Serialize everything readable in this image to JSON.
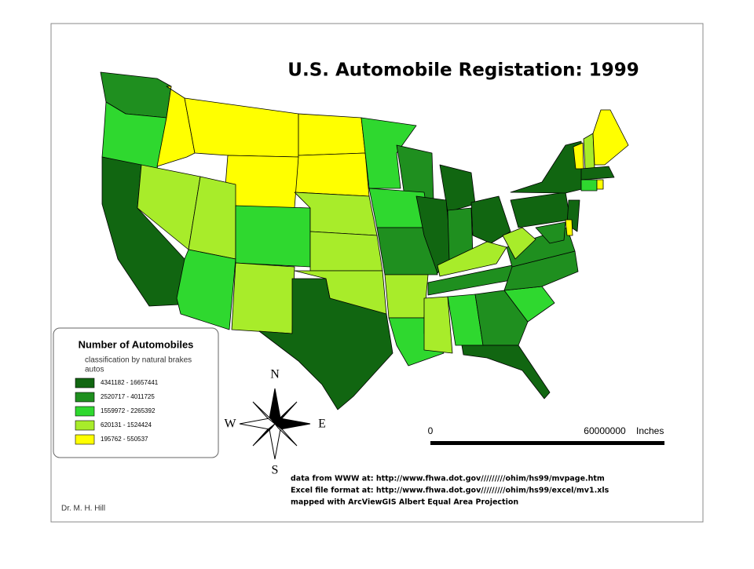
{
  "title": "U.S. Automobile Registation: 1999",
  "legend": {
    "title": "Number of Automobiles",
    "subtitle": "classification by natural brakes",
    "unit": "autos",
    "classes": [
      {
        "label": "4341182 - 16657441",
        "color": "#116611"
      },
      {
        "label": "2520717 - 4011725",
        "color": "#1f8f1f"
      },
      {
        "label": "1559972 - 2265392",
        "color": "#2fd82f"
      },
      {
        "label": "620131 - 1524424",
        "color": "#a8ec2a"
      },
      {
        "label": "195762 - 550537",
        "color": "#ffff00"
      }
    ]
  },
  "compass": {
    "north": "N",
    "south": "S",
    "west": "W",
    "east": "E"
  },
  "scale_bar": {
    "start": "0",
    "end": "60000000",
    "unit": "Inches"
  },
  "notes": [
    "data from WWW at: http://www.fhwa.dot.gov/////////ohim/hs99/mvpage.htm",
    "Excel file format at: http://www.fhwa.dot.gov/////////ohim/hs99/excel/mv1.xls",
    "mapped with ArcViewGIS  Albert Equal Area Projection"
  ],
  "author": "Dr. M. H. Hill"
}
